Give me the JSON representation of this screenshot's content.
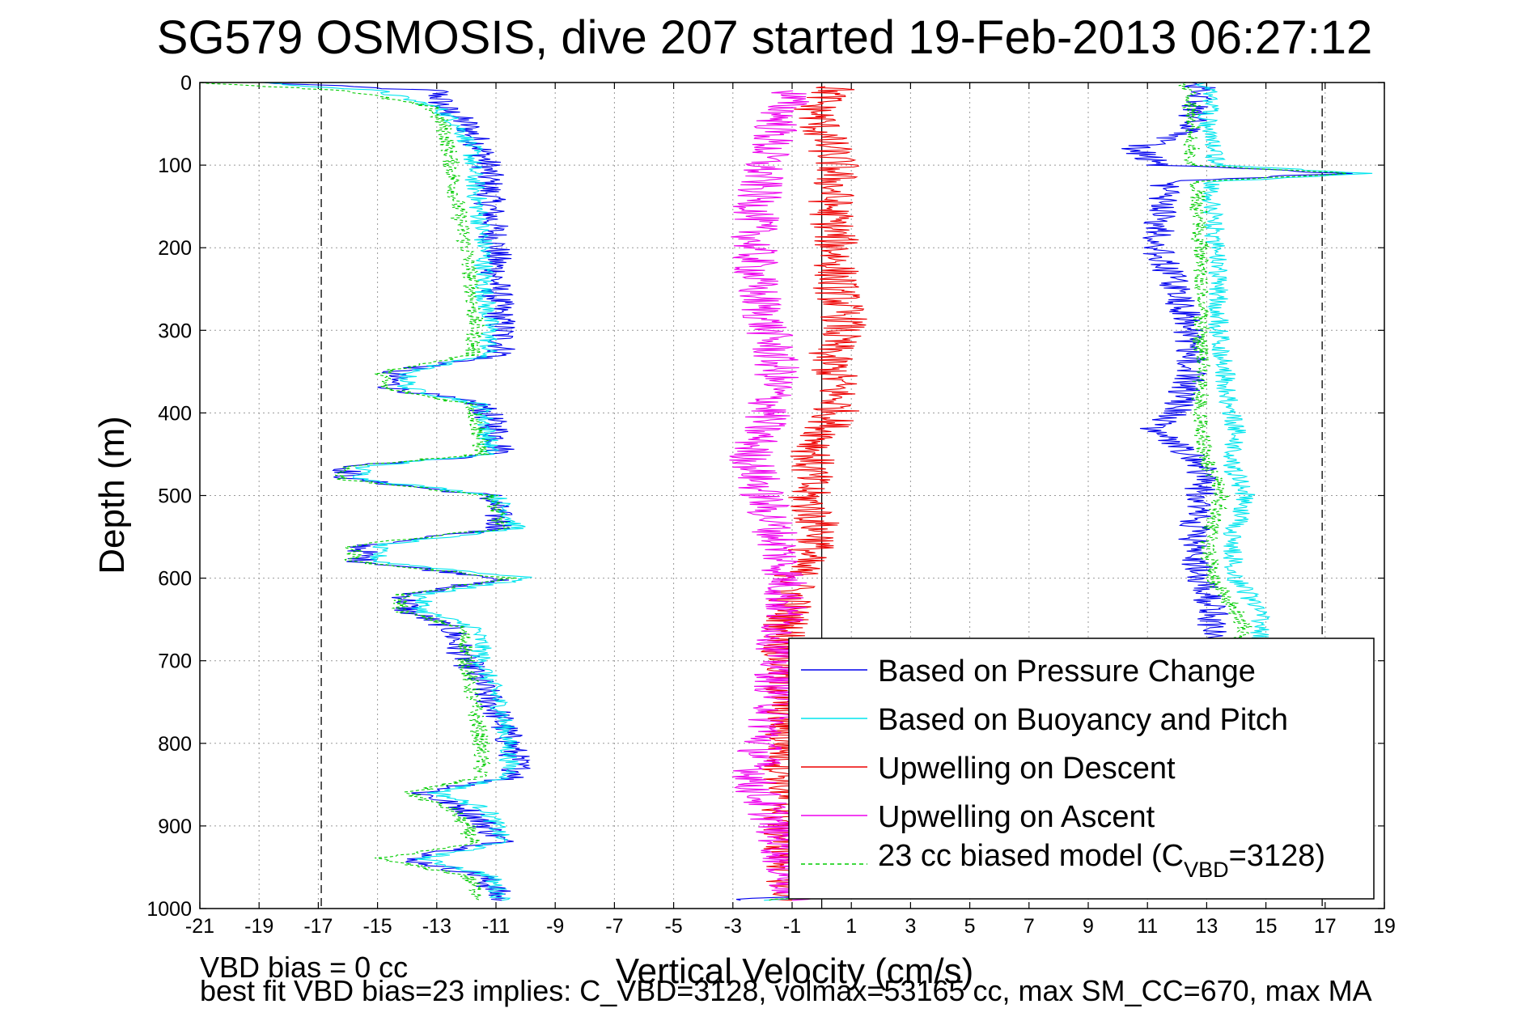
{
  "chart_data": {
    "type": "line",
    "title": "SG579 OSMOSIS, dive 207 started 19-Feb-2013 06:27:12",
    "xlabel": "Vertical Velocity (cm/s)",
    "ylabel": "Depth (m)",
    "xlim": [
      -21,
      19
    ],
    "ylim": [
      0,
      1000
    ],
    "y_reversed": true,
    "grid": true,
    "x_ticks": [
      -21,
      -19,
      -17,
      -15,
      -13,
      -11,
      -9,
      -7,
      -5,
      -3,
      -1,
      1,
      3,
      5,
      7,
      9,
      11,
      13,
      15,
      17,
      19
    ],
    "y_ticks": [
      0,
      100,
      200,
      300,
      400,
      500,
      600,
      700,
      800,
      900,
      1000
    ],
    "reference_lines": {
      "zero_line_x": 0,
      "dashed_lines_x": [
        -16.9,
        16.9
      ]
    },
    "legend_placement": "bottom-right",
    "legend": [
      {
        "label": "Based on Pressure Change",
        "color": "#0000ee",
        "style": "solid"
      },
      {
        "label": "Based on Buoyancy and Pitch",
        "color": "#00e5ee",
        "style": "solid"
      },
      {
        "label": "Upwelling on Descent",
        "color": "#ee0000",
        "style": "solid"
      },
      {
        "label": "Upwelling on Ascent",
        "color": "#ee00ee",
        "style": "solid"
      },
      {
        "label_main": "23 cc biased model (C",
        "label_sub": "VBD",
        "label_tail": "=3128)",
        "color": "#00cc00",
        "style": "dashed"
      }
    ],
    "series": [
      {
        "name": "Based on Pressure Change (descent)",
        "color": "#0000ee",
        "noise": 0.55,
        "depth": [
          0,
          10,
          30,
          50,
          80,
          100,
          150,
          200,
          250,
          300,
          330,
          350,
          370,
          390,
          420,
          450,
          465,
          480,
          500,
          540,
          560,
          580,
          600,
          620,
          640,
          660,
          680,
          700,
          760,
          800,
          840,
          860,
          880,
          900,
          920,
          940,
          960,
          980,
          990
        ],
        "values": [
          -19,
          -13,
          -12.8,
          -12,
          -11.5,
          -11.3,
          -11.2,
          -11,
          -11,
          -10.8,
          -10.8,
          -14.5,
          -14.5,
          -11.5,
          -11,
          -10.8,
          -16,
          -16,
          -11.2,
          -10.8,
          -15.5,
          -15.5,
          -10.7,
          -14,
          -14,
          -12.5,
          -12.3,
          -12,
          -11,
          -10.5,
          -10.2,
          -13.5,
          -12,
          -11.3,
          -10.8,
          -14,
          -11.5,
          -11,
          -10.8
        ]
      },
      {
        "name": "Based on Buoyancy and Pitch (descent)",
        "color": "#00e5ee",
        "noise": 0.35,
        "depth": [
          0,
          10,
          30,
          50,
          80,
          100,
          150,
          200,
          250,
          300,
          330,
          350,
          370,
          390,
          420,
          450,
          465,
          480,
          500,
          540,
          560,
          580,
          600,
          620,
          640,
          660,
          680,
          700,
          760,
          800,
          840,
          860,
          880,
          900,
          920,
          940,
          960,
          980,
          990
        ],
        "values": [
          -19,
          -15,
          -13,
          -12.3,
          -11.8,
          -11.8,
          -11.6,
          -11.4,
          -11.4,
          -11.2,
          -11.3,
          -14,
          -14,
          -11.5,
          -11.3,
          -11.2,
          -15.5,
          -15.5,
          -11,
          -10.3,
          -15,
          -15,
          -9.8,
          -13.5,
          -13.5,
          -11.7,
          -11.5,
          -11.5,
          -10.8,
          -10.6,
          -10.5,
          -13,
          -11.3,
          -11,
          -10.8,
          -13.5,
          -11.2,
          -10.9,
          -10.8
        ]
      },
      {
        "name": "23 cc biased model (descent)",
        "color": "#00cc00",
        "dashed": true,
        "noise": 0.3,
        "depth": [
          0,
          10,
          30,
          50,
          80,
          100,
          150,
          200,
          250,
          300,
          330,
          350,
          370,
          390,
          420,
          450,
          465,
          480,
          500,
          540,
          560,
          580,
          600,
          620,
          640,
          660,
          680,
          700,
          760,
          800,
          840,
          860,
          880,
          900,
          920,
          940,
          960,
          980,
          990
        ],
        "values": [
          -21,
          -16,
          -13.2,
          -12.8,
          -12.6,
          -12.5,
          -12.3,
          -12,
          -11.8,
          -11.7,
          -11.8,
          -14.8,
          -14.8,
          -11.8,
          -11.6,
          -11.5,
          -16.2,
          -16.2,
          -11.2,
          -10.8,
          -15.8,
          -15.8,
          -10.5,
          -14.2,
          -14.2,
          -12.2,
          -12,
          -12,
          -11.7,
          -11.5,
          -11.5,
          -14,
          -12.5,
          -12,
          -11.8,
          -15,
          -12,
          -11.6,
          -11.5
        ]
      },
      {
        "name": "Upwelling on Descent",
        "color": "#ee0000",
        "noise": 0.8,
        "depth": [
          5,
          30,
          60,
          100,
          150,
          200,
          250,
          290,
          330,
          360,
          400,
          450,
          500,
          550,
          580,
          620,
          660,
          700,
          800,
          900,
          990
        ],
        "values": [
          0.5,
          -0.2,
          0,
          0.5,
          0.3,
          0.5,
          0.5,
          0.8,
          0.2,
          0.5,
          0.5,
          -0.3,
          -0.5,
          0,
          -0.7,
          -1,
          -1.2,
          -1.3,
          -1.2,
          -1.3,
          -1
        ]
      },
      {
        "name": "Upwelling on Ascent",
        "color": "#ee00ee",
        "noise": 0.8,
        "depth": [
          10,
          50,
          100,
          150,
          200,
          250,
          300,
          350,
          400,
          450,
          500,
          550,
          600,
          650,
          700,
          750,
          800,
          850,
          900,
          950,
          990
        ],
        "values": [
          -1,
          -1.5,
          -2,
          -2.2,
          -2.3,
          -2.2,
          -1.8,
          -1.5,
          -1.8,
          -2.4,
          -2,
          -1.5,
          -1.2,
          -1.3,
          -1.5,
          -1.5,
          -2,
          -2.3,
          -1.5,
          -1.2,
          -1
        ]
      },
      {
        "name": "Based on Pressure Change (ascent)",
        "color": "#0000ee",
        "noise": 0.55,
        "depth": [
          990,
          950,
          900,
          860,
          800,
          700,
          660,
          640,
          600,
          560,
          500,
          460,
          420,
          400,
          350,
          300,
          250,
          200,
          150,
          120,
          110,
          100,
          80,
          60,
          40,
          20,
          10,
          0
        ],
        "values": [
          -3,
          14.5,
          13.5,
          13.5,
          13.2,
          13.2,
          13.2,
          13.2,
          12.8,
          12.5,
          12.8,
          12.8,
          11.2,
          12,
          12.5,
          12.4,
          12,
          11.3,
          11.5,
          11.6,
          17.5,
          11.5,
          10.5,
          12.5,
          12.5,
          12.8,
          13,
          12.5
        ]
      },
      {
        "name": "Based on Buoyancy and Pitch (ascent)",
        "color": "#00e5ee",
        "noise": 0.35,
        "depth": [
          990,
          950,
          900,
          860,
          800,
          700,
          660,
          640,
          600,
          560,
          500,
          460,
          420,
          400,
          350,
          300,
          250,
          200,
          150,
          120,
          110,
          100,
          80,
          60,
          40,
          20,
          10,
          0
        ],
        "values": [
          -2,
          16,
          15,
          15,
          14.8,
          14.8,
          14.8,
          14.8,
          14,
          13.8,
          14.3,
          13.8,
          14,
          13.8,
          13.6,
          13.4,
          13.4,
          13.3,
          13.2,
          13.2,
          18.5,
          13.3,
          13.2,
          13,
          13,
          13.2,
          13,
          13
        ]
      },
      {
        "name": "23 cc biased model (ascent)",
        "color": "#00cc00",
        "dashed": true,
        "noise": 0.3,
        "depth": [
          990,
          950,
          900,
          860,
          800,
          700,
          660,
          640,
          600,
          560,
          500,
          460,
          420,
          400,
          350,
          300,
          250,
          200,
          150,
          120,
          110,
          100,
          80,
          60,
          40,
          20,
          10,
          0
        ],
        "values": [
          -2,
          14,
          14,
          14,
          14,
          14,
          14.3,
          14,
          13.2,
          13,
          13.5,
          13,
          12.8,
          12.8,
          12.8,
          12.8,
          12.8,
          12.8,
          12.7,
          12.7,
          17.8,
          12.5,
          12.5,
          12.6,
          12.5,
          12.5,
          12.3,
          12.3
        ]
      }
    ]
  },
  "footer": {
    "line1": "VBD bias = 0 cc",
    "line2": "best fit VBD bias=23 implies: C_VBD=3128, volmax=53165 cc, max SM_CC=670, max MA"
  }
}
